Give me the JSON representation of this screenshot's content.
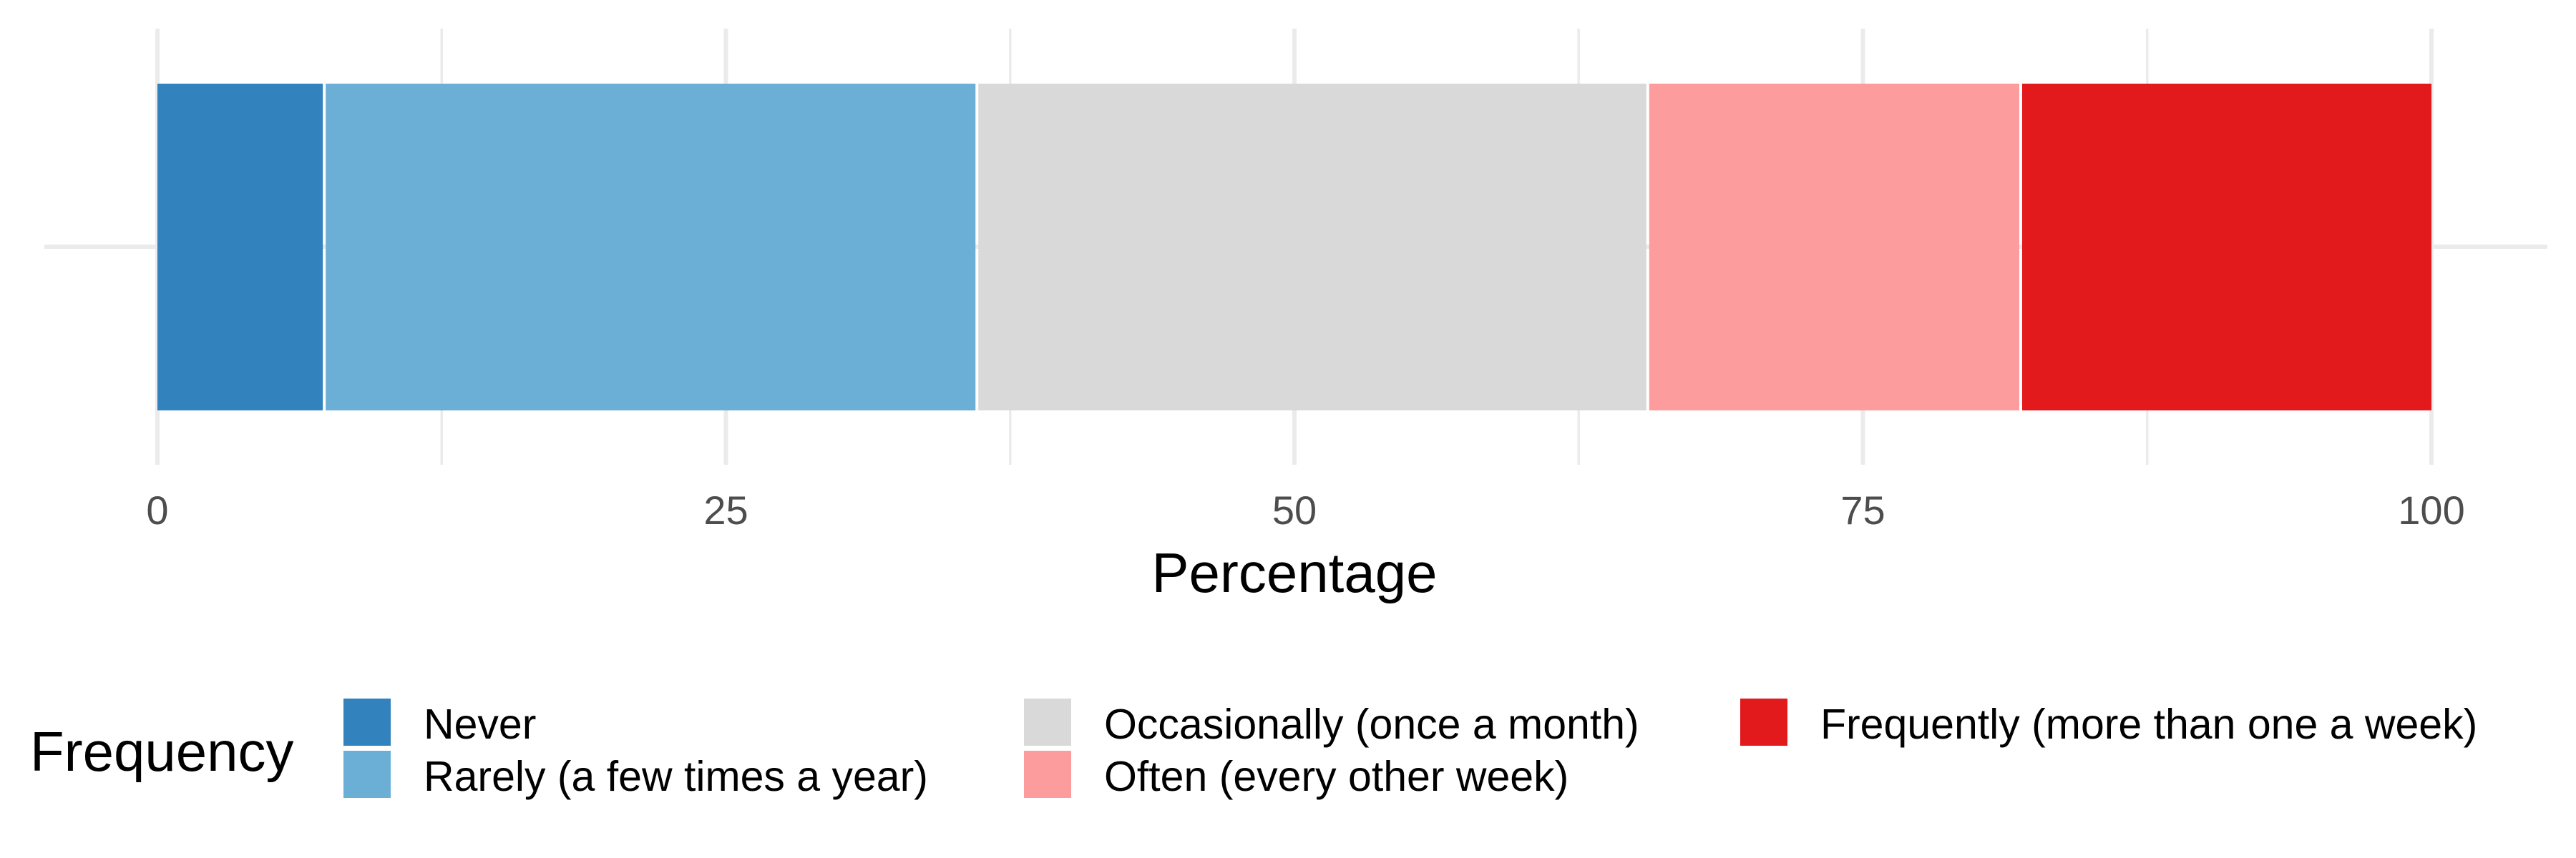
{
  "chart_data": {
    "type": "bar",
    "orientation": "horizontal",
    "stacked": true,
    "title": "",
    "xlabel": "Percentage",
    "ylabel": "",
    "xlim": [
      0,
      100
    ],
    "x_ticks": [
      0,
      25,
      50,
      75,
      100
    ],
    "x_tick_labels": [
      "0",
      "25",
      "50",
      "75",
      "100"
    ],
    "grid": true,
    "legend_position": "bottom",
    "legend_title": "Frequency",
    "series": [
      {
        "name": "Never",
        "value": 7.4,
        "color": "#3182bd"
      },
      {
        "name": "Rarely (a few times a year)",
        "value": 28.7,
        "color": "#6baed6"
      },
      {
        "name": "Occasionally (once a month)",
        "value": 29.5,
        "color": "#d9d9d9"
      },
      {
        "name": "Often (every other week)",
        "value": 16.4,
        "color": "#fc9c9c"
      },
      {
        "name": "Frequently (more than one a week)",
        "value": 18.0,
        "color": "#e31a1c"
      }
    ]
  }
}
